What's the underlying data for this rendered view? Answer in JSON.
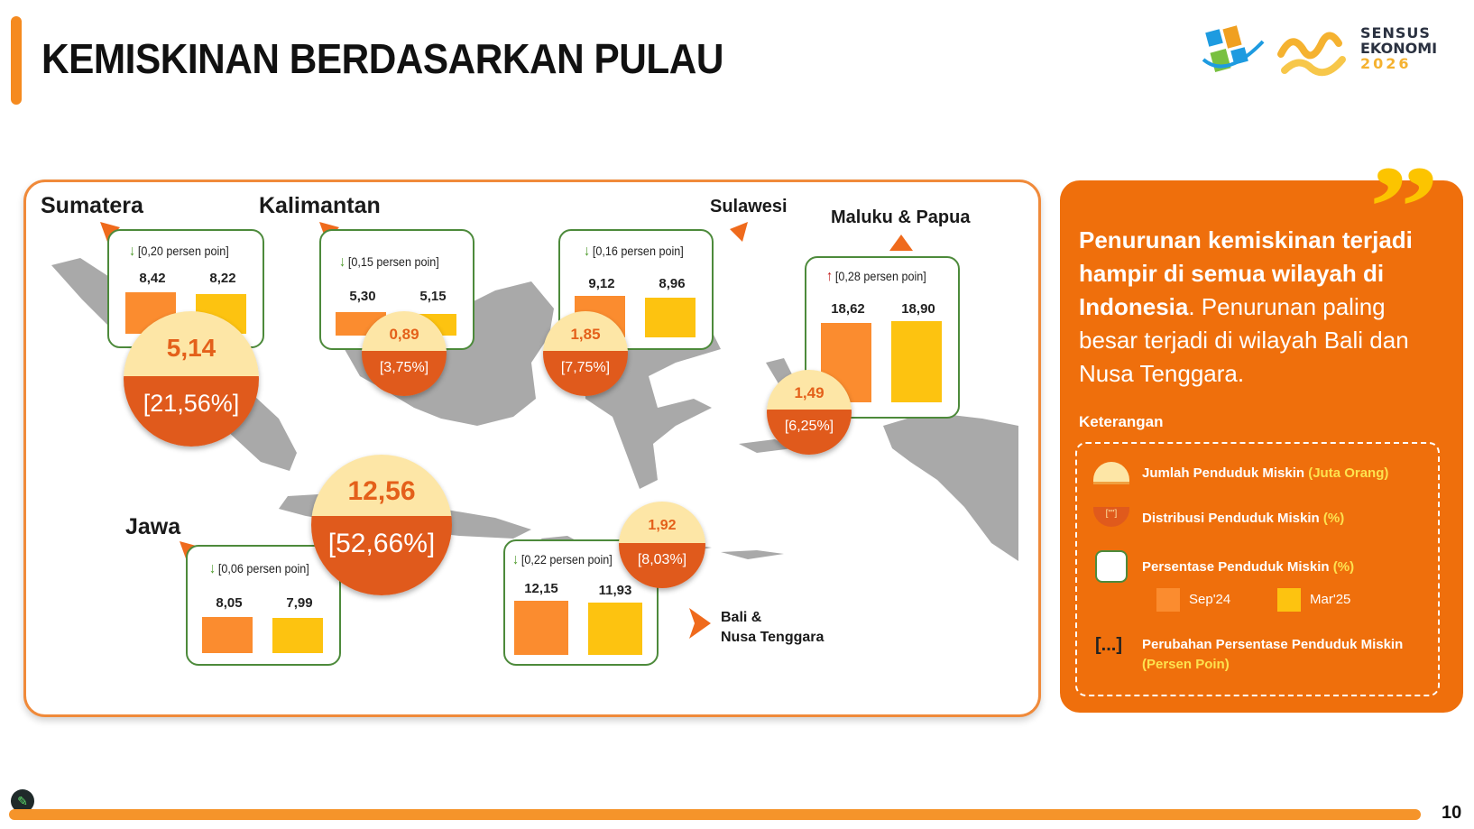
{
  "title": "KEMISKINAN BERDASARKAN PULAU",
  "logo": {
    "line1": "SENSUS",
    "line2": "EKONOMI",
    "year": "2026"
  },
  "regions": {
    "sumatera": {
      "name": "Sumatera",
      "change": "[0,20 persen poin]",
      "trend": "down",
      "sep24": "8,42",
      "mar25": "8,22",
      "poor": "5,14",
      "dist": "[21,56%]"
    },
    "kalimantan": {
      "name": "Kalimantan",
      "change": "[0,15 persen poin]",
      "trend": "down",
      "sep24": "5,30",
      "mar25": "5,15",
      "poor": "0,89",
      "dist": "[3,75%]"
    },
    "sulawesi": {
      "name": "Sulawesi",
      "change": "[0,16 persen poin]",
      "trend": "down",
      "sep24": "9,12",
      "mar25": "8,96",
      "poor": "1,85",
      "dist": "[7,75%]"
    },
    "maluku": {
      "name": "Maluku & Papua",
      "change": "[0,28 persen poin]",
      "trend": "up",
      "sep24": "18,62",
      "mar25": "18,90",
      "poor": "1,49",
      "dist": "[6,25%]"
    },
    "jawa": {
      "name": "Jawa",
      "change": "[0,06 persen poin]",
      "trend": "down",
      "sep24": "8,05",
      "mar25": "7,99",
      "poor": "12,56",
      "dist": "[52,66%]"
    },
    "bali": {
      "name1": "Bali &",
      "name2": "Nusa Tenggara",
      "change": "[0,22 persen poin]",
      "trend": "down",
      "sep24": "12,15",
      "mar25": "11,93",
      "poor": "1,92",
      "dist": "[8,03%]"
    }
  },
  "side": {
    "bold1": "Penurunan kemiskinan terjadi hampir di semua wilayah di Indonesia",
    "normal1": ". Penurunan paling besar terjadi di wilayah Bali dan Nusa Tenggara."
  },
  "legend": {
    "title": "Keterangan",
    "item1": "Jumlah Penduduk Miskin ",
    "item1_hl": "(Juta Orang)",
    "item2": "Distribusi Penduduk Miskin ",
    "item2_hl": "(%)",
    "item2_icon": "[\"\"]",
    "item3": "Persentase Penduduk Miskin ",
    "item3_hl": "(%)",
    "sep24": "Sep'24",
    "mar25": "Mar'25",
    "item4_icon": "[...]",
    "item4": "Perubahan Persentase Penduduk Miskin",
    "item4_hl": "(Persen Poin)"
  },
  "page_number": "10",
  "colors": {
    "accent": "#f58a1f",
    "bar_sep24": "#fb8c2f",
    "bar_mar25": "#fdc310",
    "bubble_top": "#fde6a6",
    "bubble_bottom": "#e05a1c",
    "panel": "#ef6f0c"
  }
}
